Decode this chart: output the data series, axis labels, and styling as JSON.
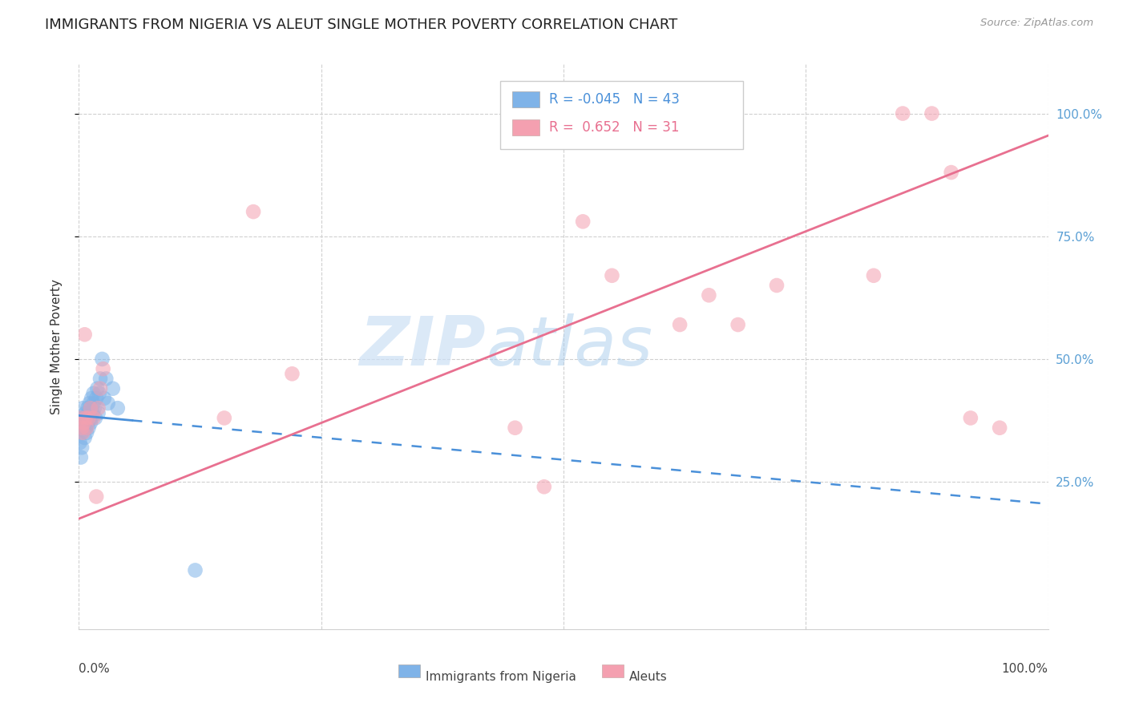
{
  "title": "IMMIGRANTS FROM NIGERIA VS ALEUT SINGLE MOTHER POVERTY CORRELATION CHART",
  "source": "Source: ZipAtlas.com",
  "ylabel": "Single Mother Poverty",
  "legend_blue_r": "-0.045",
  "legend_blue_n": "43",
  "legend_pink_r": "0.652",
  "legend_pink_n": "31",
  "legend_label_blue": "Immigrants from Nigeria",
  "legend_label_pink": "Aleuts",
  "watermark_zip": "ZIP",
  "watermark_atlas": "atlas",
  "blue_scatter_x": [
    0.001,
    0.002,
    0.002,
    0.003,
    0.003,
    0.003,
    0.004,
    0.004,
    0.005,
    0.005,
    0.006,
    0.006,
    0.007,
    0.007,
    0.008,
    0.008,
    0.009,
    0.009,
    0.01,
    0.01,
    0.011,
    0.011,
    0.012,
    0.012,
    0.013,
    0.013,
    0.014,
    0.015,
    0.015,
    0.016,
    0.017,
    0.018,
    0.019,
    0.02,
    0.021,
    0.022,
    0.024,
    0.026,
    0.028,
    0.03,
    0.035,
    0.04,
    0.12
  ],
  "blue_scatter_y": [
    0.33,
    0.3,
    0.36,
    0.38,
    0.35,
    0.32,
    0.37,
    0.4,
    0.36,
    0.38,
    0.34,
    0.37,
    0.36,
    0.39,
    0.35,
    0.38,
    0.37,
    0.4,
    0.36,
    0.39,
    0.38,
    0.41,
    0.37,
    0.4,
    0.42,
    0.38,
    0.39,
    0.41,
    0.43,
    0.4,
    0.38,
    0.42,
    0.44,
    0.39,
    0.43,
    0.46,
    0.5,
    0.42,
    0.46,
    0.41,
    0.44,
    0.4,
    0.07
  ],
  "pink_scatter_x": [
    0.002,
    0.003,
    0.004,
    0.005,
    0.006,
    0.007,
    0.008,
    0.01,
    0.012,
    0.015,
    0.018,
    0.02,
    0.022,
    0.025,
    0.15,
    0.18,
    0.22,
    0.45,
    0.48,
    0.52,
    0.55,
    0.62,
    0.65,
    0.68,
    0.72,
    0.82,
    0.85,
    0.88,
    0.9,
    0.92,
    0.95
  ],
  "pink_scatter_y": [
    0.38,
    0.36,
    0.35,
    0.37,
    0.55,
    0.38,
    0.36,
    0.38,
    0.4,
    0.38,
    0.22,
    0.4,
    0.44,
    0.48,
    0.38,
    0.8,
    0.47,
    0.36,
    0.24,
    0.78,
    0.67,
    0.57,
    0.63,
    0.57,
    0.65,
    0.67,
    1.0,
    1.0,
    0.88,
    0.38,
    0.36
  ],
  "blue_line_x0": 0.0,
  "blue_line_x_solid_end": 0.055,
  "blue_line_x1": 1.0,
  "blue_line_y0": 0.385,
  "blue_line_y1": 0.205,
  "pink_line_x0": 0.0,
  "pink_line_x1": 1.0,
  "pink_line_y0": 0.175,
  "pink_line_y1": 0.955,
  "xlim": [
    0.0,
    1.0
  ],
  "ylim": [
    -0.05,
    1.1
  ],
  "yticks": [
    0.25,
    0.5,
    0.75,
    1.0
  ],
  "ytick_labels": [
    "25.0%",
    "50.0%",
    "75.0%",
    "100.0%"
  ],
  "grid_color": "#d0d0d0",
  "blue_color": "#7fb3e8",
  "pink_color": "#f4a0b0",
  "blue_line_color": "#4a90d9",
  "pink_line_color": "#e87090",
  "title_fontsize": 13,
  "axis_label_fontsize": 11,
  "tick_fontsize": 11,
  "right_tick_color": "#5a9fd4",
  "background_color": "#ffffff"
}
